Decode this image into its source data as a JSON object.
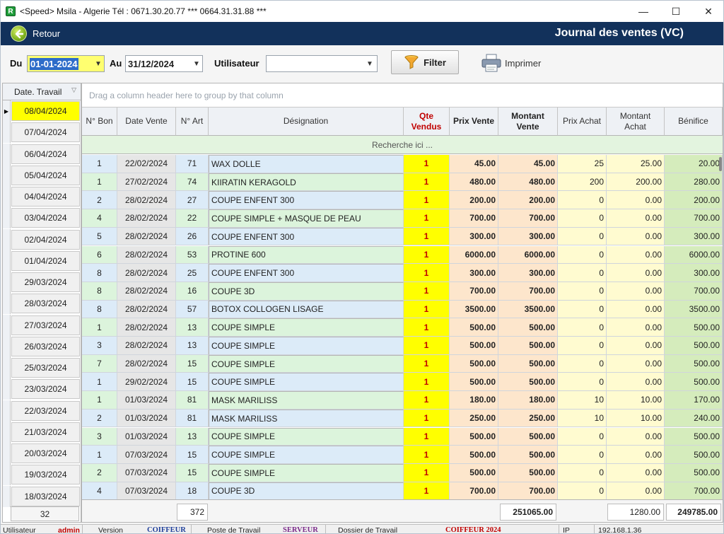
{
  "window": {
    "app_icon_letter": "R",
    "title": "<Speed>  Msila - Algerie Tél : 0671.30.20.77  *** 0664.31.31.88  ***",
    "minimize": "—",
    "maximize": "☐",
    "close": "✕"
  },
  "header": {
    "back_label": "Retour",
    "title": "Journal des ventes  (VC)"
  },
  "filters": {
    "from_label": "Du",
    "from_value": "01-01-2024",
    "to_label": "Au",
    "to_value": "31/12/2024",
    "user_label": "Utilisateur",
    "user_value": "",
    "filter_label": "Filter",
    "print_label": "Imprimer"
  },
  "left_panel": {
    "header": "Date. Travail",
    "dates": [
      "08/04/2024",
      "07/04/2024",
      "06/04/2024",
      "05/04/2024",
      "04/04/2024",
      "03/04/2024",
      "02/04/2024",
      "01/04/2024",
      "29/03/2024",
      "28/03/2024",
      "27/03/2024",
      "26/03/2024",
      "25/03/2024",
      "23/03/2024",
      "22/03/2024",
      "21/03/2024",
      "20/03/2024",
      "19/03/2024",
      "18/03/2024"
    ],
    "selected_index": 0,
    "count": "32"
  },
  "grid": {
    "group_hint": "Drag a column header here to group by that column",
    "search_hint": "Recherche ici ...",
    "columns": [
      "N° Bon",
      "Date Vente",
      "N° Art",
      "Désignation",
      "Qte Vendus",
      "Prix Vente",
      "Montant Vente",
      "Prix Achat",
      "Montant Achat",
      "Bénifice"
    ],
    "rows": [
      [
        "1",
        "22/02/2024",
        "71",
        "WAX DOLLE",
        "1",
        "45.00",
        "45.00",
        "25",
        "25.00",
        "20.00"
      ],
      [
        "1",
        "27/02/2024",
        "74",
        "KIIRATIN KERAGOLD",
        "1",
        "480.00",
        "480.00",
        "200",
        "200.00",
        "280.00"
      ],
      [
        "2",
        "28/02/2024",
        "27",
        "COUPE ENFENT 300",
        "1",
        "200.00",
        "200.00",
        "0",
        "0.00",
        "200.00"
      ],
      [
        "4",
        "28/02/2024",
        "22",
        "COUPE SIMPLE + MASQUE DE PEAU",
        "1",
        "700.00",
        "700.00",
        "0",
        "0.00",
        "700.00"
      ],
      [
        "5",
        "28/02/2024",
        "26",
        "COUPE ENFENT 300",
        "1",
        "300.00",
        "300.00",
        "0",
        "0.00",
        "300.00"
      ],
      [
        "6",
        "28/02/2024",
        "53",
        "PROTINE 600",
        "1",
        "6000.00",
        "6000.00",
        "0",
        "0.00",
        "6000.00"
      ],
      [
        "8",
        "28/02/2024",
        "25",
        "COUPE ENFENT 300",
        "1",
        "300.00",
        "300.00",
        "0",
        "0.00",
        "300.00"
      ],
      [
        "8",
        "28/02/2024",
        "16",
        "COUPE 3D",
        "1",
        "700.00",
        "700.00",
        "0",
        "0.00",
        "700.00"
      ],
      [
        "8",
        "28/02/2024",
        "57",
        "BOTOX COLLOGEN LISAGE",
        "1",
        "3500.00",
        "3500.00",
        "0",
        "0.00",
        "3500.00"
      ],
      [
        "1",
        "28/02/2024",
        "13",
        "COUPE SIMPLE",
        "1",
        "500.00",
        "500.00",
        "0",
        "0.00",
        "500.00"
      ],
      [
        "3",
        "28/02/2024",
        "13",
        "COUPE SIMPLE",
        "1",
        "500.00",
        "500.00",
        "0",
        "0.00",
        "500.00"
      ],
      [
        "7",
        "28/02/2024",
        "15",
        "COUPE SIMPLE",
        "1",
        "500.00",
        "500.00",
        "0",
        "0.00",
        "500.00"
      ],
      [
        "1",
        "29/02/2024",
        "15",
        "COUPE SIMPLE",
        "1",
        "500.00",
        "500.00",
        "0",
        "0.00",
        "500.00"
      ],
      [
        "1",
        "01/03/2024",
        "81",
        "MASK MARILISS",
        "1",
        "180.00",
        "180.00",
        "10",
        "10.00",
        "170.00"
      ],
      [
        "2",
        "01/03/2024",
        "81",
        "MASK MARILISS",
        "1",
        "250.00",
        "250.00",
        "10",
        "10.00",
        "240.00"
      ],
      [
        "3",
        "01/03/2024",
        "13",
        "COUPE SIMPLE",
        "1",
        "500.00",
        "500.00",
        "0",
        "0.00",
        "500.00"
      ],
      [
        "1",
        "07/03/2024",
        "15",
        "COUPE SIMPLE",
        "1",
        "500.00",
        "500.00",
        "0",
        "0.00",
        "500.00"
      ],
      [
        "2",
        "07/03/2024",
        "15",
        "COUPE SIMPLE",
        "1",
        "500.00",
        "500.00",
        "0",
        "0.00",
        "500.00"
      ],
      [
        "4",
        "07/03/2024",
        "18",
        "COUPE 3D",
        "1",
        "700.00",
        "700.00",
        "0",
        "0.00",
        "700.00"
      ]
    ],
    "totals": {
      "art_count": "372",
      "montant_vente": "251065.00",
      "montant_achat": "1280.00",
      "benefice": "249785.00"
    }
  },
  "status": {
    "user_label": "Utilisateur",
    "user_value": "admin",
    "version_label": "Version",
    "version_value": "COIFFEUR",
    "poste_label": "Poste de Travail",
    "poste_value": "SERVEUR",
    "dossier_label": "Dossier de Travail",
    "dossier_value": "COIFFEUR 2024",
    "ip_label": "IP",
    "ip_value": "192.168.1.36"
  },
  "colors": {
    "header_bg": "#12315b",
    "row_blue": "#dcebf8",
    "row_green": "#dcf4dc",
    "qty_yellow": "#ffff00",
    "price_peach": "#fde6cc",
    "achat_cream": "#fffbd0",
    "benefice_green": "#d5ecbc",
    "date_gray": "#e6e6e6"
  }
}
